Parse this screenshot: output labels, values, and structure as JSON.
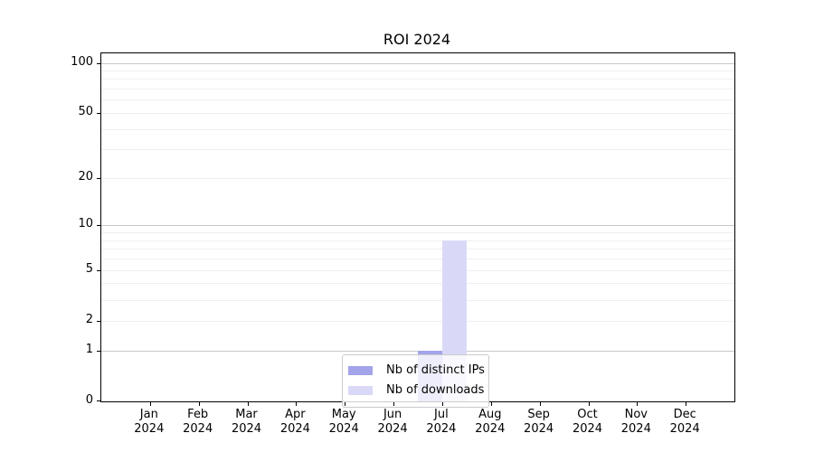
{
  "chart_data": {
    "type": "bar",
    "title": "ROI 2024",
    "year_label": "2024",
    "categories": [
      "Jan",
      "Feb",
      "Mar",
      "Apr",
      "May",
      "Jun",
      "Jul",
      "Aug",
      "Sep",
      "Oct",
      "Nov",
      "Dec"
    ],
    "series": [
      {
        "name": "Nb of distinct IPs",
        "color": "#a3a3ea",
        "values": [
          0,
          0,
          0,
          0,
          0,
          0,
          1,
          0,
          0,
          0,
          0,
          0
        ]
      },
      {
        "name": "Nb of downloads",
        "color": "#d9d9f7",
        "values": [
          0,
          0,
          0,
          0,
          0,
          0,
          8,
          0,
          0,
          0,
          0,
          0
        ]
      }
    ],
    "yscale": "log1p",
    "ylim": [
      0,
      114
    ],
    "xlabel": "",
    "ylabel": "",
    "y_tick_labels": [
      100,
      50,
      20,
      10,
      5,
      2,
      1,
      0
    ],
    "y_decade_gridlines": [
      1,
      10,
      100
    ],
    "y_minor_gridlines": [
      2,
      3,
      4,
      5,
      6,
      7,
      8,
      9,
      20,
      30,
      40,
      50,
      60,
      70,
      80,
      90
    ],
    "grid": true,
    "legend_position": "lower center",
    "colors": {
      "spine": "#000000",
      "decade_grid": "#c8c8c8",
      "minor_grid": "#efefef",
      "background": "#ffffff"
    }
  }
}
